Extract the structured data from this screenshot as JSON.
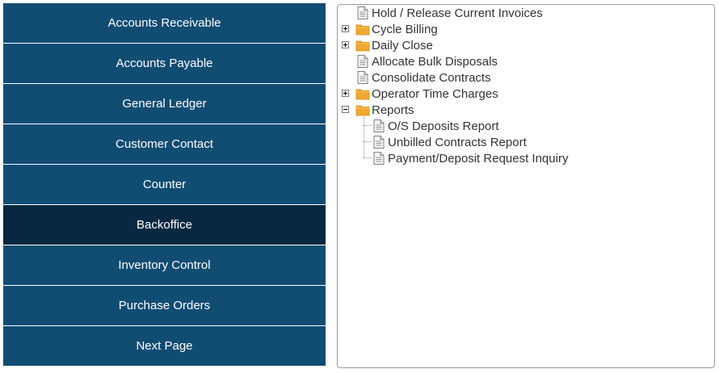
{
  "menu": [
    {
      "label": "Accounts Receivable",
      "active": false
    },
    {
      "label": "Accounts Payable",
      "active": false
    },
    {
      "label": "General Ledger",
      "active": false
    },
    {
      "label": "Customer Contact",
      "active": false
    },
    {
      "label": "Counter",
      "active": false
    },
    {
      "label": "Backoffice",
      "active": true
    },
    {
      "label": "Inventory Control",
      "active": false
    },
    {
      "label": "Purchase Orders",
      "active": false
    },
    {
      "label": "Next Page",
      "active": false
    }
  ],
  "tree": [
    {
      "label": "Hold / Release Current Invoices",
      "type": "file",
      "state": "",
      "icon": "document-icon"
    },
    {
      "label": "Cycle Billing",
      "type": "folder",
      "state": "collapsed",
      "icon": "folder-icon"
    },
    {
      "label": "Daily Close",
      "type": "folder",
      "state": "collapsed",
      "icon": "folder-icon"
    },
    {
      "label": "Allocate Bulk Disposals",
      "type": "file",
      "state": "",
      "icon": "document-icon"
    },
    {
      "label": "Consolidate Contracts",
      "type": "file",
      "state": "",
      "icon": "document-icon"
    },
    {
      "label": "Operator Time Charges",
      "type": "folder",
      "state": "collapsed",
      "icon": "folder-icon"
    },
    {
      "label": "Reports",
      "type": "folder",
      "state": "expanded",
      "icon": "folder-icon",
      "children": [
        {
          "label": "O/S Deposits Report",
          "type": "file",
          "icon": "document-icon"
        },
        {
          "label": "Unbilled Contracts Report",
          "type": "file",
          "icon": "document-icon"
        },
        {
          "label": "Payment/Deposit Request Inquiry",
          "type": "file",
          "icon": "document-icon"
        }
      ]
    }
  ],
  "colors": {
    "menu_bg": "#114c73",
    "menu_active_bg": "#062840",
    "folder": "#f0a830"
  }
}
